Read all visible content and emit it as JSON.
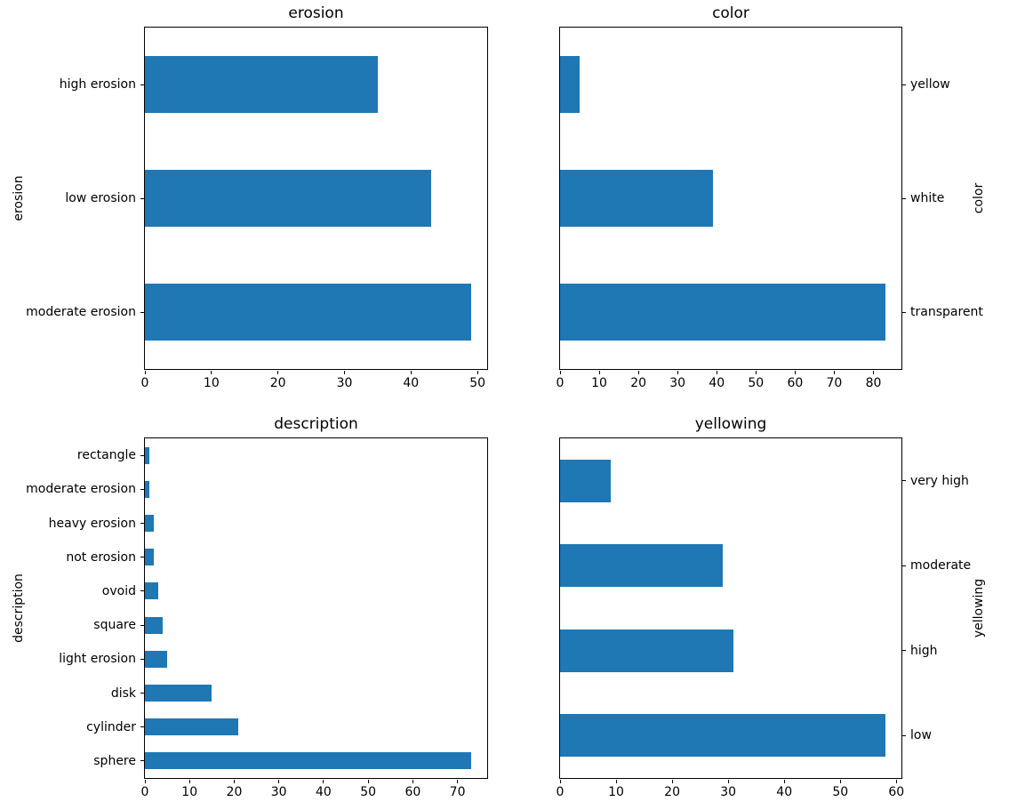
{
  "figure": {
    "kind": "matplotlib-figure",
    "bar_color": "#1f77b4",
    "background_color": "#ffffff",
    "text_color": "#000000",
    "grid": false,
    "legend": false
  },
  "chart_data": [
    {
      "type": "bar",
      "orientation": "horizontal",
      "title": "erosion",
      "ylabel": "erosion",
      "xlabel": "",
      "label_side": "left",
      "categories": [
        "high erosion",
        "low erosion",
        "moderate erosion"
      ],
      "values": [
        35,
        43,
        49
      ],
      "xticks": [
        0,
        10,
        20,
        30,
        40,
        50
      ],
      "xlim": [
        0,
        51.45
      ]
    },
    {
      "type": "bar",
      "orientation": "horizontal",
      "title": "color",
      "ylabel": "color",
      "xlabel": "",
      "label_side": "right",
      "categories": [
        "yellow",
        "white",
        "transparent"
      ],
      "values": [
        5,
        39,
        83
      ],
      "xticks": [
        0,
        10,
        20,
        30,
        40,
        50,
        60,
        70,
        80
      ],
      "xlim": [
        0,
        87.15
      ]
    },
    {
      "type": "bar",
      "orientation": "horizontal",
      "title": "description",
      "ylabel": "description",
      "xlabel": "",
      "label_side": "left",
      "categories": [
        "rectangle",
        "moderate erosion",
        "heavy erosion",
        "not erosion",
        "ovoid",
        "square",
        "light erosion",
        "disk",
        "cylinder",
        "sphere"
      ],
      "values": [
        1,
        1,
        2,
        2,
        3,
        4,
        5,
        15,
        21,
        73
      ],
      "xticks": [
        0,
        10,
        20,
        30,
        40,
        50,
        60,
        70
      ],
      "xlim": [
        0,
        76.65
      ]
    },
    {
      "type": "bar",
      "orientation": "horizontal",
      "title": "yellowing",
      "ylabel": "yellowing",
      "xlabel": "",
      "label_side": "right",
      "categories": [
        "very high",
        "moderate",
        "high",
        "low"
      ],
      "values": [
        9,
        29,
        31,
        58
      ],
      "xticks": [
        0,
        10,
        20,
        30,
        40,
        50,
        60
      ],
      "xlim": [
        0,
        60.9
      ]
    }
  ]
}
